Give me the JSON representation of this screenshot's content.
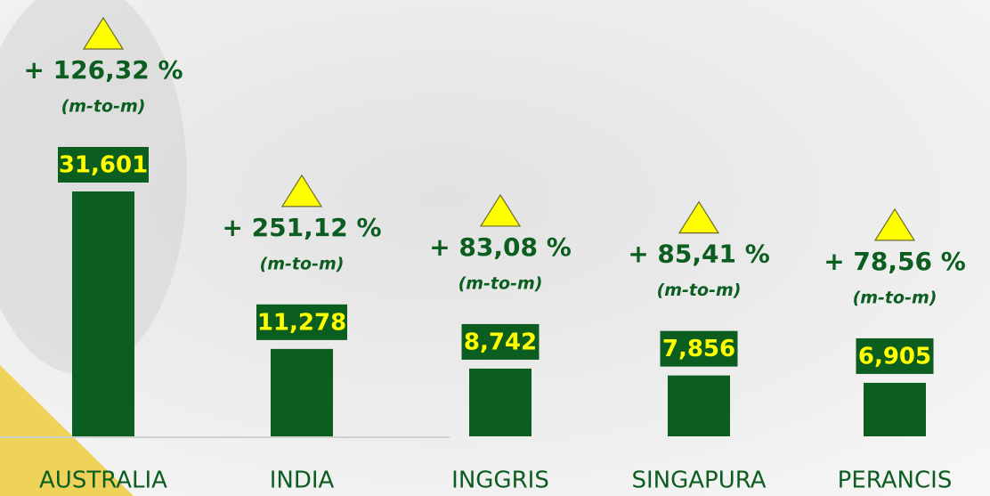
{
  "chart_data": {
    "type": "bar",
    "categories": [
      "AUSTRALIA",
      "INDIA",
      "INGGRIS",
      "SINGAPURA",
      "PERANCIS"
    ],
    "values": [
      31601,
      11278,
      8742,
      7856,
      6905
    ],
    "value_labels": [
      "31,601",
      "11,278",
      "8,742",
      "7,856",
      "6,905"
    ],
    "growth_labels": [
      "+ 126,32 %",
      "+ 251,12 %",
      "+ 83,08 %",
      "+ 85,41 %",
      "+ 78,56 %"
    ],
    "growth_note": "(m-to-m)",
    "color": "#0b5e20",
    "label_color": "#ffff00",
    "arrow_color": "#ffff00"
  }
}
